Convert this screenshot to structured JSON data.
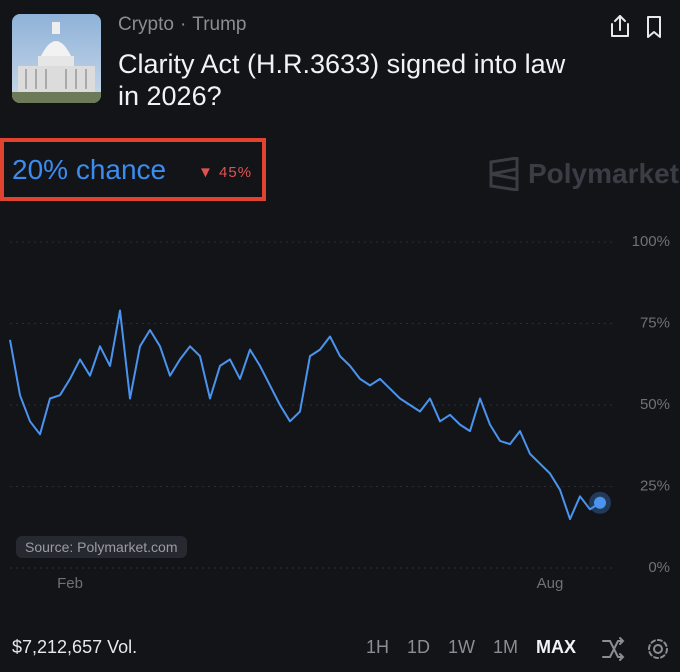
{
  "header": {
    "tags": [
      "Crypto",
      "Trump"
    ],
    "title": "Clarity Act (H.R.3633) signed into law in 2026?"
  },
  "chance": "20% chance",
  "change": "45%",
  "brand": "Polymarket",
  "source": "Source: Polymarket.com",
  "volume": "$7,212,657 Vol.",
  "timeframes": [
    "1H",
    "1D",
    "1W",
    "1M",
    "MAX"
  ],
  "chart_data": {
    "type": "line",
    "color": "#4a94f0",
    "categories": [
      null,
      null,
      null,
      null,
      null,
      null,
      "Feb",
      null,
      null,
      null,
      null,
      null,
      null,
      null,
      null,
      null,
      null,
      null,
      null,
      null,
      null,
      null,
      null,
      null,
      null,
      null,
      null,
      null,
      null,
      null,
      null,
      null,
      null,
      null,
      null,
      null,
      null,
      null,
      null,
      null,
      null,
      null,
      null,
      null,
      null,
      null,
      null,
      null,
      null,
      null,
      null,
      null,
      null,
      null,
      "Aug",
      null,
      null,
      null,
      null,
      null
    ],
    "values": [
      70,
      53,
      45,
      41,
      52,
      53,
      58,
      64,
      59,
      68,
      62,
      79,
      52,
      68,
      73,
      68,
      59,
      64,
      68,
      65,
      52,
      62,
      64,
      58,
      67,
      62,
      56,
      50,
      45,
      48,
      65,
      67,
      71,
      65,
      62,
      58,
      56,
      58,
      55,
      52,
      50,
      48,
      52,
      45,
      47,
      44,
      42,
      52,
      44,
      39,
      38,
      42,
      35,
      32,
      29,
      24,
      15,
      22,
      18,
      20
    ],
    "ylim": [
      0,
      100
    ],
    "yticks": [
      {
        "value": 0,
        "label": "0%"
      },
      {
        "value": 25,
        "label": "25%"
      },
      {
        "value": 50,
        "label": "50%"
      },
      {
        "value": 75,
        "label": "75%"
      },
      {
        "value": 100,
        "label": "100%"
      }
    ],
    "grid": true
  }
}
